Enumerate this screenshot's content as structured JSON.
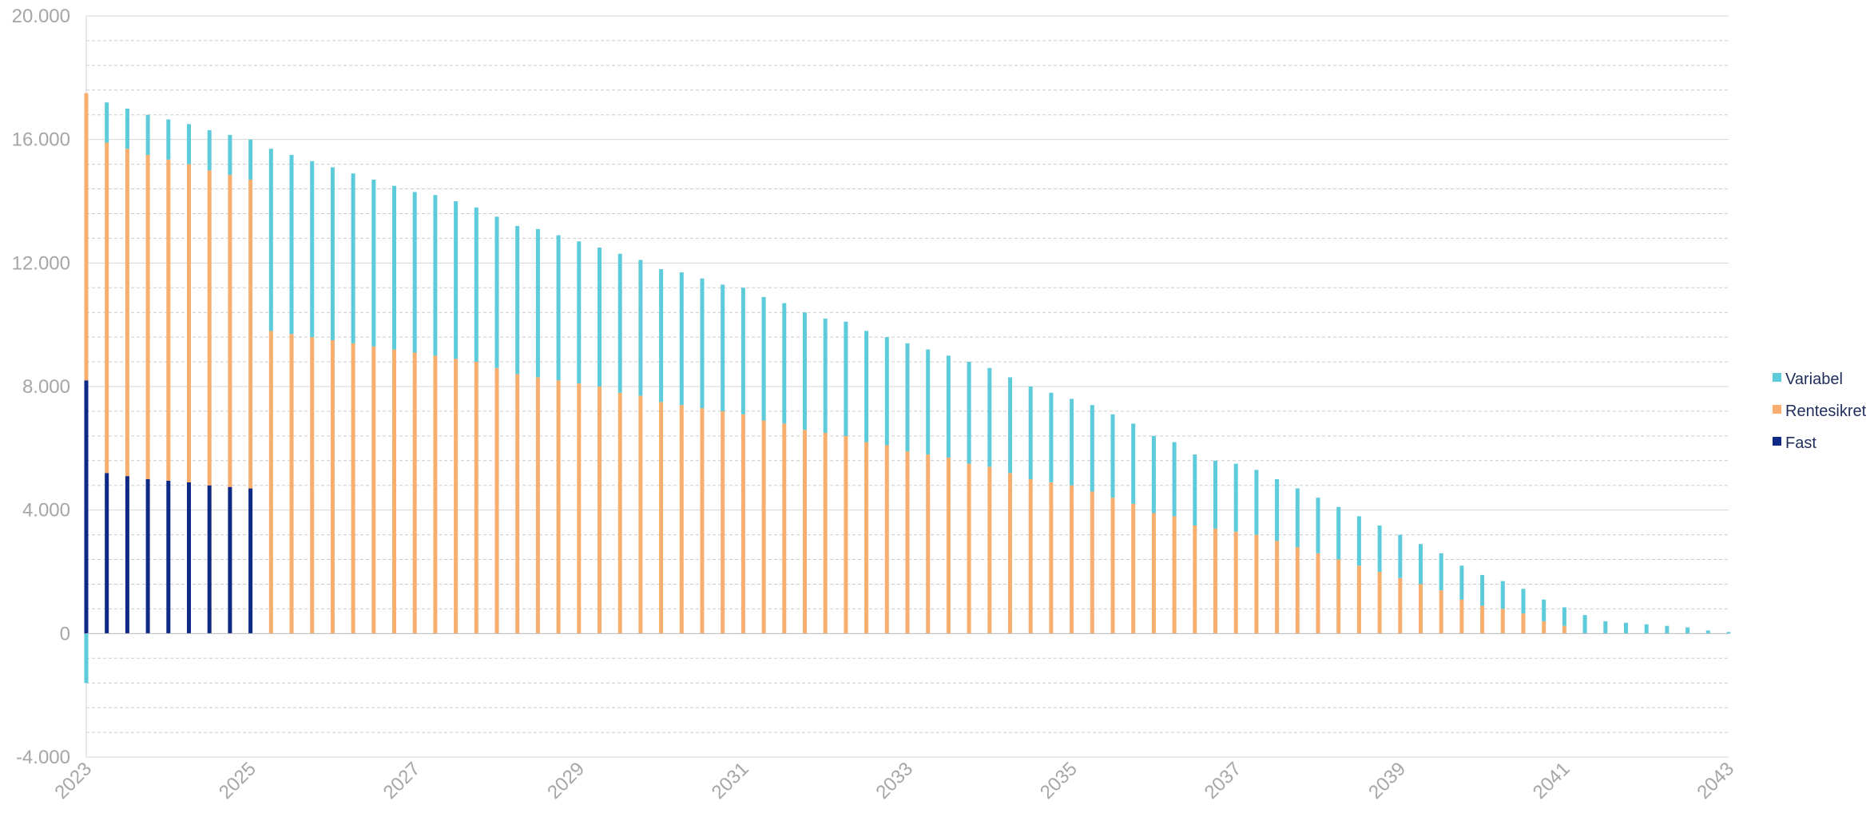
{
  "chart_data": {
    "type": "bar",
    "stacked": true,
    "x_start": "2023-01",
    "x_end": "2043-01",
    "period": "quarterly",
    "ylim": [
      -4000,
      20000
    ],
    "ytick_values": [
      -4000,
      0,
      4000,
      8000,
      12000,
      16000,
      20000
    ],
    "ytick_labels": [
      "-4.000",
      "0",
      "4.000",
      "8.000",
      "12.000",
      "16.000",
      "20.000"
    ],
    "xtick_labels": [
      "2023",
      "2025",
      "2027",
      "2029",
      "2031",
      "2033",
      "2035",
      "2037",
      "2039",
      "2041",
      "2043"
    ],
    "grid": true,
    "legend_position": "right",
    "colors": {
      "Fast": "#0f2a84",
      "Rentesikret": "#f7ae6f",
      "Variabel": "#5ecbdb"
    },
    "x": [
      "2023-Q1",
      "2023-Q2",
      "2023-Q3",
      "2023-Q4",
      "2024-Q1",
      "2024-Q2",
      "2024-Q3",
      "2024-Q4",
      "2025-Q1",
      "2025-Q2",
      "2025-Q3",
      "2025-Q4",
      "2026-Q1",
      "2026-Q2",
      "2026-Q3",
      "2026-Q4",
      "2027-Q1",
      "2027-Q2",
      "2027-Q3",
      "2027-Q4",
      "2028-Q1",
      "2028-Q2",
      "2028-Q3",
      "2028-Q4",
      "2029-Q1",
      "2029-Q2",
      "2029-Q3",
      "2029-Q4",
      "2030-Q1",
      "2030-Q2",
      "2030-Q3",
      "2030-Q4",
      "2031-Q1",
      "2031-Q2",
      "2031-Q3",
      "2031-Q4",
      "2032-Q1",
      "2032-Q2",
      "2032-Q3",
      "2032-Q4",
      "2033-Q1",
      "2033-Q2",
      "2033-Q3",
      "2033-Q4",
      "2034-Q1",
      "2034-Q2",
      "2034-Q3",
      "2034-Q4",
      "2035-Q1",
      "2035-Q2",
      "2035-Q3",
      "2035-Q4",
      "2036-Q1",
      "2036-Q2",
      "2036-Q3",
      "2036-Q4",
      "2037-Q1",
      "2037-Q2",
      "2037-Q3",
      "2037-Q4",
      "2038-Q1",
      "2038-Q2",
      "2038-Q3",
      "2038-Q4",
      "2039-Q1",
      "2039-Q2",
      "2039-Q3",
      "2039-Q4",
      "2040-Q1",
      "2040-Q2",
      "2040-Q3",
      "2040-Q4",
      "2041-Q1",
      "2041-Q2",
      "2041-Q3",
      "2041-Q4",
      "2042-Q1",
      "2042-Q2",
      "2042-Q3",
      "2042-Q4",
      "2043-Q1"
    ],
    "series": [
      {
        "name": "Variabel",
        "values": [
          -1600,
          1300,
          1300,
          1300,
          1300,
          1300,
          1300,
          1300,
          1300,
          5900,
          5800,
          5700,
          5600,
          5500,
          5400,
          5300,
          5200,
          5200,
          5100,
          5000,
          4900,
          4800,
          4800,
          4700,
          4600,
          4500,
          4500,
          4400,
          4300,
          4300,
          4200,
          4100,
          4100,
          4000,
          3900,
          3800,
          3700,
          3700,
          3600,
          3500,
          3500,
          3400,
          3300,
          3300,
          3200,
          3100,
          3000,
          2900,
          2800,
          2800,
          2700,
          2600,
          2500,
          2400,
          2300,
          2200,
          2200,
          2100,
          2000,
          1900,
          1800,
          1700,
          1600,
          1500,
          1400,
          1300,
          1200,
          1100,
          1000,
          900,
          800,
          700,
          600,
          600,
          400,
          350,
          300,
          250,
          200,
          100,
          50
        ]
      },
      {
        "name": "Rentesikret",
        "values": [
          9300,
          10700,
          10600,
          10500,
          10400,
          10300,
          10200,
          10100,
          10000,
          9800,
          9700,
          9600,
          9500,
          9400,
          9300,
          9200,
          9100,
          9000,
          8900,
          8800,
          8600,
          8400,
          8300,
          8200,
          8100,
          8000,
          7800,
          7700,
          7500,
          7400,
          7300,
          7200,
          7100,
          6900,
          6800,
          6600,
          6500,
          6400,
          6200,
          6100,
          5900,
          5800,
          5700,
          5500,
          5400,
          5200,
          5000,
          4900,
          4800,
          4600,
          4400,
          4200,
          3900,
          3800,
          3500,
          3400,
          3300,
          3200,
          3000,
          2800,
          2600,
          2400,
          2200,
          2000,
          1800,
          1600,
          1400,
          1100,
          900,
          800,
          650,
          400,
          250,
          0,
          0,
          0,
          0,
          0,
          0,
          0,
          0
        ]
      },
      {
        "name": "Fast",
        "values": [
          8200,
          5200,
          5100,
          5000,
          4950,
          4900,
          4800,
          4750,
          4700,
          0,
          0,
          0,
          0,
          0,
          0,
          0,
          0,
          0,
          0,
          0,
          0,
          0,
          0,
          0,
          0,
          0,
          0,
          0,
          0,
          0,
          0,
          0,
          0,
          0,
          0,
          0,
          0,
          0,
          0,
          0,
          0,
          0,
          0,
          0,
          0,
          0,
          0,
          0,
          0,
          0,
          0,
          0,
          0,
          0,
          0,
          0,
          0,
          0,
          0,
          0,
          0,
          0,
          0,
          0,
          0,
          0,
          0,
          0,
          0,
          0,
          0,
          0,
          0,
          0,
          0,
          0,
          0,
          0,
          0,
          0,
          0
        ]
      }
    ],
    "legend_entries": [
      "Variabel",
      "Rentesikret",
      "Fast"
    ]
  }
}
